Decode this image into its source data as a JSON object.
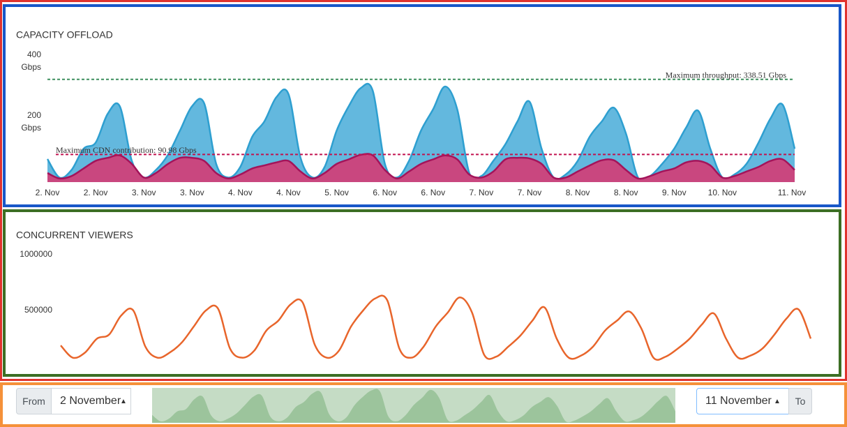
{
  "chart_data": [
    {
      "type": "area",
      "title": "CAPACITY OFFLOAD",
      "categories": [
        "2. Nov",
        null,
        null,
        null,
        "2. Nov",
        null,
        null,
        null,
        "3. Nov",
        null,
        null,
        null,
        "3. Nov",
        null,
        null,
        null,
        "4. Nov",
        null,
        null,
        null,
        "4. Nov",
        null,
        null,
        null,
        "5. Nov",
        null,
        null,
        null,
        "6. Nov",
        null,
        null,
        null,
        "6. Nov",
        null,
        null,
        null,
        "7. Nov",
        null,
        null,
        null,
        "7. Nov",
        null,
        null,
        null,
        "8. Nov",
        null,
        null,
        null,
        "8. Nov",
        null,
        null,
        null,
        "9. Nov",
        null,
        null,
        null,
        "10. Nov",
        null,
        null,
        null,
        null,
        null,
        "11. Nov"
      ],
      "series": [
        {
          "color": "#2e9fd0",
          "fill": "#63b8de",
          "values": [
            76,
            15,
            40,
            110,
            130,
            225,
            250,
            70,
            15,
            40,
            90,
            170,
            250,
            260,
            60,
            15,
            50,
            150,
            200,
            280,
            290,
            80,
            15,
            50,
            170,
            250,
            310,
            300,
            60,
            15,
            70,
            170,
            240,
            315,
            240,
            30,
            20,
            70,
            125,
            200,
            265,
            110,
            15,
            25,
            70,
            150,
            200,
            245,
            160,
            15,
            20,
            60,
            110,
            180,
            235,
            110,
            15,
            25,
            60,
            130,
            210,
            255,
            110
          ]
        },
        {
          "color": "#a3145a",
          "fill": "#c9477f",
          "values": [
            30,
            12,
            20,
            45,
            70,
            80,
            88,
            60,
            15,
            30,
            60,
            80,
            80,
            70,
            30,
            12,
            25,
            45,
            55,
            65,
            70,
            35,
            12,
            30,
            60,
            75,
            90,
            88,
            40,
            12,
            35,
            60,
            75,
            88,
            75,
            25,
            15,
            35,
            75,
            80,
            78,
            60,
            15,
            15,
            35,
            55,
            72,
            72,
            40,
            12,
            20,
            35,
            45,
            65,
            70,
            55,
            15,
            20,
            35,
            50,
            70,
            75,
            40
          ]
        }
      ],
      "plot_lines": [
        {
          "value": 338.51,
          "label": "Maximum throughput: 338.51 Gbps",
          "color": "#3d8f5e"
        },
        {
          "value": 90.98,
          "label": "Maximum CDN contribution: 90.98 Gbps",
          "color": "#c2134f"
        }
      ],
      "ylim": [
        0,
        400
      ],
      "yticks": [
        {
          "value": 200,
          "label": "200 Gbps"
        },
        {
          "value": 400,
          "label": "400 Gbps"
        }
      ]
    },
    {
      "type": "line",
      "title": "CONCURRENT VIEWERS",
      "series": [
        {
          "color": "#e8652b",
          "values": [
            187000,
            77000,
            122000,
            248000,
            284000,
            455000,
            500000,
            176000,
            77000,
            122000,
            212000,
            356000,
            500000,
            518000,
            158000,
            77000,
            140000,
            320000,
            410000,
            554000,
            572000,
            194000,
            77000,
            140000,
            356000,
            500000,
            608000,
            590000,
            158000,
            77000,
            176000,
            356000,
            482000,
            617000,
            482000,
            104000,
            86000,
            176000,
            275000,
            410000,
            527000,
            248000,
            77000,
            95000,
            176000,
            320000,
            410000,
            491000,
            338000,
            77000,
            86000,
            158000,
            248000,
            374000,
            473000,
            248000,
            77000,
            95000,
            158000,
            284000,
            428000,
            509000,
            248000
          ]
        }
      ],
      "ylim": [
        0,
        1000000
      ],
      "yticks": [
        500000,
        1000000
      ]
    }
  ],
  "controls": {
    "from_label": "From",
    "from_value": "2 November",
    "to_value": "11 November",
    "to_label": "To"
  }
}
